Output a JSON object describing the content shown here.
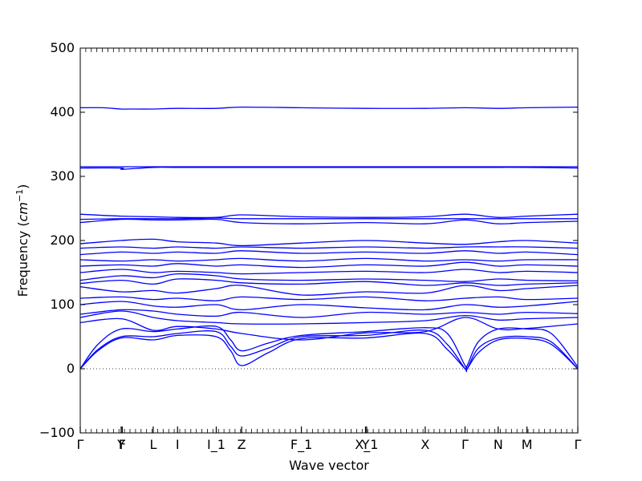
{
  "chart_data": {
    "type": "line",
    "title": "",
    "xlabel": "Wave vector",
    "ylabel": "Frequency (cm^-1)",
    "ylabel_parts": {
      "main": "Frequency (",
      "unit": "cm",
      "exp": "−1",
      "close": ")"
    },
    "ylim": [
      -100,
      500
    ],
    "yticks": [
      -100,
      0,
      100,
      200,
      300,
      400,
      500
    ],
    "ytick_labels": [
      "−100",
      "0",
      "100",
      "200",
      "300",
      "400",
      "500"
    ],
    "xlim": [
      0,
      22.5
    ],
    "xticks": [
      {
        "x": 0.0,
        "label": "Γ"
      },
      {
        "x": 1.85,
        "label": "Y"
      },
      {
        "x": 1.9,
        "label": "F"
      },
      {
        "x": 3.3,
        "label": "L"
      },
      {
        "x": 4.4,
        "label": "I"
      },
      {
        "x": 6.15,
        "label": "I_1"
      },
      {
        "x": 7.3,
        "label": "Z"
      },
      {
        "x": 10.0,
        "label": "F_1"
      },
      {
        "x": 12.9,
        "label": "Y"
      },
      {
        "x": 12.95,
        "label": "X_1"
      },
      {
        "x": 15.6,
        "label": "X"
      },
      {
        "x": 17.4,
        "label": "Γ"
      },
      {
        "x": 18.9,
        "label": "N"
      },
      {
        "x": 20.2,
        "label": "M"
      },
      {
        "x": 22.5,
        "label": "Γ"
      }
    ],
    "zero_line": true,
    "line_color": "#0000ff",
    "series": [
      {
        "x": [
          0,
          0.8,
          1.85,
          3.3,
          4.4,
          6.15,
          6.8,
          7.3,
          8.5,
          10.0,
          12.9,
          15.6,
          16.6,
          17.4,
          17.5,
          18.0,
          18.9,
          20.2,
          21.3,
          22.5
        ],
        "y": [
          0,
          28,
          48,
          45,
          52,
          50,
          28,
          5,
          25,
          47,
          48,
          55,
          30,
          0,
          0,
          25,
          45,
          47,
          38,
          0
        ]
      },
      {
        "x": [
          0,
          0.8,
          1.85,
          3.3,
          4.4,
          6.15,
          6.8,
          7.3,
          8.5,
          10.0,
          12.9,
          15.6,
          16.6,
          17.4,
          17.5,
          18.0,
          18.9,
          20.2,
          21.3,
          22.5
        ],
        "y": [
          0,
          30,
          50,
          50,
          55,
          58,
          35,
          20,
          32,
          50,
          52,
          60,
          38,
          0,
          0,
          32,
          48,
          50,
          42,
          0
        ]
      },
      {
        "x": [
          0,
          0.8,
          1.85,
          3.3,
          4.4,
          6.15,
          6.8,
          7.3,
          8.5,
          10.0,
          12.9,
          15.6,
          16.6,
          17.4,
          17.5,
          18.0,
          18.9,
          20.2,
          21.3,
          22.5
        ],
        "y": [
          0,
          38,
          62,
          58,
          62,
          66,
          45,
          28,
          40,
          52,
          58,
          64,
          55,
          5,
          5,
          42,
          62,
          62,
          55,
          3
        ]
      },
      {
        "x": [
          0,
          1.85,
          3.3,
          4.4,
          6.15,
          7.3,
          10.0,
          12.9,
          15.6,
          17.4,
          18.9,
          20.2,
          22.5
        ],
        "y": [
          72,
          78,
          60,
          66,
          62,
          55,
          45,
          56,
          58,
          80,
          62,
          63,
          70
        ]
      },
      {
        "x": [
          0,
          1.85,
          3.3,
          4.4,
          6.15,
          7.3,
          10.0,
          12.9,
          15.6,
          17.4,
          18.9,
          20.2,
          22.5
        ],
        "y": [
          80,
          90,
          80,
          75,
          72,
          70,
          70,
          72,
          75,
          83,
          76,
          78,
          80
        ]
      },
      {
        "x": [
          0,
          1.85,
          3.3,
          4.4,
          6.15,
          7.3,
          10.0,
          12.9,
          15.6,
          17.4,
          18.9,
          20.2,
          22.5
        ],
        "y": [
          85,
          92,
          90,
          85,
          82,
          88,
          80,
          88,
          85,
          88,
          85,
          88,
          86
        ]
      },
      {
        "x": [
          0,
          1.85,
          3.3,
          4.4,
          6.15,
          7.3,
          10.0,
          12.9,
          15.6,
          17.4,
          18.9,
          20.2,
          22.5
        ],
        "y": [
          100,
          105,
          98,
          96,
          100,
          92,
          100,
          95,
          92,
          100,
          96,
          98,
          105
        ]
      },
      {
        "x": [
          0,
          1.85,
          3.3,
          4.4,
          6.15,
          7.3,
          10.0,
          12.9,
          15.6,
          17.4,
          18.9,
          20.2,
          22.5
        ],
        "y": [
          110,
          112,
          108,
          110,
          106,
          112,
          108,
          112,
          106,
          110,
          112,
          108,
          110
        ]
      },
      {
        "x": [
          0,
          1.85,
          3.3,
          4.4,
          6.15,
          7.3,
          10.0,
          12.9,
          15.6,
          17.4,
          18.9,
          20.2,
          22.5
        ],
        "y": [
          128,
          120,
          122,
          118,
          125,
          130,
          115,
          120,
          118,
          130,
          122,
          125,
          130
        ]
      },
      {
        "x": [
          0,
          1.85,
          3.3,
          4.4,
          6.15,
          7.3,
          10.0,
          12.9,
          15.6,
          17.4,
          18.9,
          20.2,
          22.5
        ],
        "y": [
          133,
          138,
          132,
          140,
          138,
          134,
          132,
          136,
          130,
          134,
          130,
          132,
          134
        ]
      },
      {
        "x": [
          0,
          1.85,
          3.3,
          4.4,
          6.15,
          7.3,
          10.0,
          12.9,
          15.6,
          17.4,
          18.9,
          20.2,
          22.5
        ],
        "y": [
          138,
          145,
          142,
          148,
          145,
          140,
          138,
          140,
          138,
          136,
          140,
          138,
          137
        ]
      },
      {
        "x": [
          0,
          1.85,
          3.3,
          4.4,
          6.15,
          7.3,
          10.0,
          12.9,
          15.6,
          17.4,
          18.9,
          20.2,
          22.5
        ],
        "y": [
          150,
          155,
          150,
          152,
          150,
          148,
          150,
          152,
          150,
          155,
          150,
          152,
          150
        ]
      },
      {
        "x": [
          0,
          1.85,
          3.3,
          4.4,
          6.15,
          7.3,
          10.0,
          12.9,
          15.6,
          17.4,
          18.9,
          20.2,
          22.5
        ],
        "y": [
          160,
          162,
          160,
          164,
          160,
          162,
          158,
          162,
          160,
          166,
          160,
          162,
          160
        ]
      },
      {
        "x": [
          0,
          1.85,
          3.3,
          4.4,
          6.15,
          7.3,
          10.0,
          12.9,
          15.6,
          17.4,
          18.9,
          20.2,
          22.5
        ],
        "y": [
          170,
          168,
          170,
          168,
          170,
          172,
          168,
          172,
          168,
          170,
          168,
          170,
          170
        ]
      },
      {
        "x": [
          0,
          1.85,
          3.3,
          4.4,
          6.15,
          7.3,
          10.0,
          12.9,
          15.6,
          17.4,
          18.9,
          20.2,
          22.5
        ],
        "y": [
          178,
          182,
          180,
          182,
          180,
          184,
          180,
          182,
          180,
          184,
          180,
          182,
          178
        ]
      },
      {
        "x": [
          0,
          1.85,
          3.3,
          4.4,
          6.15,
          7.3,
          10.0,
          12.9,
          15.6,
          17.4,
          18.9,
          20.2,
          22.5
        ],
        "y": [
          188,
          190,
          188,
          190,
          188,
          190,
          188,
          190,
          188,
          190,
          190,
          190,
          188
        ]
      },
      {
        "x": [
          0,
          1.85,
          3.3,
          4.4,
          6.15,
          7.3,
          10.0,
          12.9,
          15.6,
          17.4,
          18.9,
          20.2,
          22.5
        ],
        "y": [
          195,
          200,
          202,
          198,
          196,
          192,
          196,
          200,
          196,
          194,
          198,
          200,
          196
        ]
      },
      {
        "x": [
          0,
          1.85,
          3.3,
          4.4,
          6.15,
          7.3,
          10.0,
          12.9,
          15.6,
          17.4,
          18.9,
          20.2,
          22.5
        ],
        "y": [
          228,
          233,
          232,
          232,
          233,
          228,
          226,
          228,
          226,
          232,
          226,
          228,
          230
        ]
      },
      {
        "x": [
          0,
          1.85,
          3.3,
          4.4,
          6.15,
          7.3,
          10.0,
          12.9,
          15.6,
          17.4,
          18.9,
          20.2,
          22.5
        ],
        "y": [
          233,
          234,
          234,
          234,
          235,
          234,
          234,
          234,
          234,
          234,
          234,
          234,
          234
        ]
      },
      {
        "x": [
          0,
          1.85,
          3.3,
          4.4,
          6.15,
          7.3,
          10.0,
          12.9,
          15.6,
          17.4,
          18.9,
          20.2,
          22.5
        ],
        "y": [
          241,
          238,
          237,
          236,
          236,
          240,
          237,
          236,
          237,
          241,
          236,
          238,
          241
        ]
      },
      {
        "x": [
          0,
          1.85,
          1.9,
          3.3,
          4.4,
          6.15,
          7.3,
          10.0,
          12.9,
          15.6,
          17.4,
          18.9,
          20.2,
          22.5
        ],
        "y": [
          313,
          313,
          311,
          314,
          314,
          314,
          314,
          314,
          314,
          314,
          314,
          314,
          314,
          313
        ]
      },
      {
        "x": [
          0,
          1.85,
          3.3,
          4.4,
          6.15,
          7.3,
          10.0,
          12.9,
          15.6,
          17.4,
          18.9,
          20.2,
          22.5
        ],
        "y": [
          315,
          315,
          315,
          315,
          315,
          315,
          315,
          315,
          315,
          315,
          315,
          315,
          315
        ]
      },
      {
        "x": [
          0,
          1.0,
          1.85,
          2.2,
          3.3,
          4.4,
          6.15,
          7.3,
          10.0,
          12.9,
          15.6,
          17.4,
          18.9,
          20.2,
          22.5
        ],
        "y": [
          407,
          407,
          405,
          405,
          405,
          406,
          406,
          408,
          407,
          406,
          406,
          407,
          406,
          407,
          408
        ]
      }
    ]
  }
}
